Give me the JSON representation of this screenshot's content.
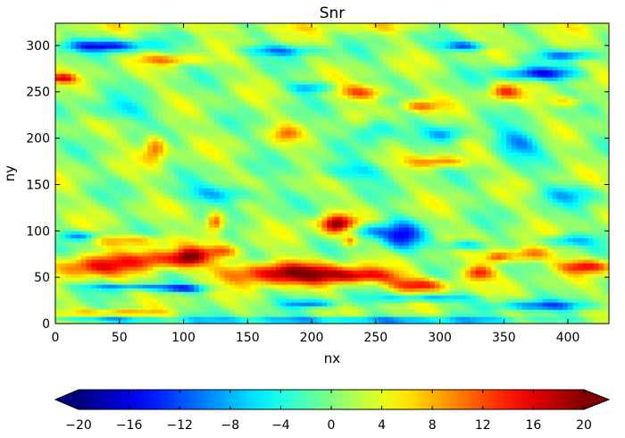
{
  "chart_data": {
    "type": "heatmap",
    "title": "Snr",
    "xlabel": "nx",
    "ylabel": "ny",
    "xlim": [
      0,
      432
    ],
    "ylim": [
      0,
      324
    ],
    "x_ticks": [
      0,
      50,
      100,
      150,
      200,
      250,
      300,
      350,
      400
    ],
    "y_ticks": [
      0,
      50,
      100,
      150,
      200,
      250,
      300
    ],
    "grid": false,
    "colormap": "jet",
    "colorbar": {
      "orientation": "horizontal",
      "location": "bottom",
      "range": [
        -20,
        20
      ],
      "extend": "both",
      "ticks": [
        -20,
        -16,
        -12,
        -8,
        -4,
        0,
        4,
        8,
        12,
        16,
        20
      ],
      "tick_labels": [
        "−20",
        "−16",
        "−12",
        "−8",
        "−4",
        "0",
        "4",
        "8",
        "12",
        "16",
        "20"
      ]
    },
    "background_value": 1,
    "features": [
      {
        "x": 30,
        "y": 62,
        "rx": 30,
        "ry": 12,
        "v": 14
      },
      {
        "x": 80,
        "y": 70,
        "rx": 28,
        "ry": 11,
        "v": 13
      },
      {
        "x": 60,
        "y": 90,
        "rx": 30,
        "ry": 6,
        "v": 10
      },
      {
        "x": 105,
        "y": 72,
        "rx": 12,
        "ry": 10,
        "v": 15
      },
      {
        "x": 130,
        "y": 78,
        "rx": 14,
        "ry": 7,
        "v": 11
      },
      {
        "x": 180,
        "y": 55,
        "rx": 48,
        "ry": 12,
        "v": 19
      },
      {
        "x": 240,
        "y": 52,
        "rx": 30,
        "ry": 8,
        "v": 14
      },
      {
        "x": 285,
        "y": 42,
        "rx": 25,
        "ry": 7,
        "v": 15
      },
      {
        "x": 330,
        "y": 55,
        "rx": 12,
        "ry": 8,
        "v": 14
      },
      {
        "x": 370,
        "y": 75,
        "rx": 16,
        "ry": 8,
        "v": 13
      },
      {
        "x": 415,
        "y": 62,
        "rx": 22,
        "ry": 7,
        "v": 14
      },
      {
        "x": 345,
        "y": 72,
        "rx": 10,
        "ry": 6,
        "v": 12
      },
      {
        "x": 125,
        "y": 110,
        "rx": 7,
        "ry": 10,
        "v": 15
      },
      {
        "x": 218,
        "y": 105,
        "rx": 10,
        "ry": 10,
        "v": 14
      },
      {
        "x": 230,
        "y": 90,
        "rx": 6,
        "ry": 6,
        "v": 12
      },
      {
        "x": 78,
        "y": 190,
        "rx": 9,
        "ry": 14,
        "v": 12
      },
      {
        "x": 180,
        "y": 205,
        "rx": 10,
        "ry": 8,
        "v": 8
      },
      {
        "x": 300,
        "y": 175,
        "rx": 22,
        "ry": 6,
        "v": 11
      },
      {
        "x": 240,
        "y": 250,
        "rx": 20,
        "ry": 8,
        "v": 12
      },
      {
        "x": 285,
        "y": 235,
        "rx": 15,
        "ry": 6,
        "v": 10
      },
      {
        "x": 350,
        "y": 250,
        "rx": 12,
        "ry": 8,
        "v": 12
      },
      {
        "x": 5,
        "y": 265,
        "rx": 10,
        "ry": 5,
        "v": 14
      },
      {
        "x": 90,
        "y": 285,
        "rx": 25,
        "ry": 5,
        "v": 9
      },
      {
        "x": 400,
        "y": 240,
        "rx": 15,
        "ry": 6,
        "v": 8
      },
      {
        "x": 50,
        "y": 12,
        "rx": 35,
        "ry": 3,
        "v": 9
      },
      {
        "x": 220,
        "y": 110,
        "rx": 20,
        "ry": 8,
        "v": 8
      },
      {
        "x": 40,
        "y": 300,
        "rx": 35,
        "ry": 6,
        "v": -14
      },
      {
        "x": 175,
        "y": 295,
        "rx": 30,
        "ry": 6,
        "v": -9
      },
      {
        "x": 320,
        "y": 300,
        "rx": 18,
        "ry": 5,
        "v": -12
      },
      {
        "x": 378,
        "y": 270,
        "rx": 30,
        "ry": 7,
        "v": -14
      },
      {
        "x": 400,
        "y": 290,
        "rx": 20,
        "ry": 5,
        "v": -10
      },
      {
        "x": 270,
        "y": 95,
        "rx": 16,
        "ry": 16,
        "v": -13
      },
      {
        "x": 245,
        "y": 100,
        "rx": 14,
        "ry": 8,
        "v": -9
      },
      {
        "x": 320,
        "y": 85,
        "rx": 15,
        "ry": 5,
        "v": -10
      },
      {
        "x": 400,
        "y": 90,
        "rx": 20,
        "ry": 6,
        "v": -8
      },
      {
        "x": 20,
        "y": 95,
        "rx": 15,
        "ry": 5,
        "v": -10
      },
      {
        "x": 60,
        "y": 40,
        "rx": 40,
        "ry": 3,
        "v": -9
      },
      {
        "x": 200,
        "y": 22,
        "rx": 20,
        "ry": 4,
        "v": -10
      },
      {
        "x": 290,
        "y": 28,
        "rx": 40,
        "ry": 4,
        "v": -9
      },
      {
        "x": 380,
        "y": 20,
        "rx": 40,
        "ry": 5,
        "v": -10
      },
      {
        "x": 100,
        "y": 38,
        "rx": 20,
        "ry": 4,
        "v": -11
      },
      {
        "x": 130,
        "y": 140,
        "rx": 30,
        "ry": 10,
        "v": -8
      },
      {
        "x": 230,
        "y": 165,
        "rx": 30,
        "ry": 10,
        "v": -6
      },
      {
        "x": 360,
        "y": 195,
        "rx": 20,
        "ry": 15,
        "v": -9
      },
      {
        "x": 305,
        "y": 205,
        "rx": 15,
        "ry": 8,
        "v": -7
      },
      {
        "x": 250,
        "y": 210,
        "rx": 15,
        "ry": 12,
        "v": -7
      },
      {
        "x": 200,
        "y": 255,
        "rx": 18,
        "ry": 6,
        "v": -8
      },
      {
        "x": 400,
        "y": 140,
        "rx": 25,
        "ry": 10,
        "v": -6
      },
      {
        "x": 230,
        "y": 4,
        "rx": 150,
        "ry": 4,
        "v": -10
      },
      {
        "x": 30,
        "y": 5,
        "rx": 40,
        "ry": 3,
        "v": -7
      },
      {
        "x": 50,
        "y": 230,
        "rx": 30,
        "ry": 12,
        "v": -5
      },
      {
        "x": 215,
        "y": 320,
        "rx": 230,
        "ry": 5,
        "v": 4
      }
    ]
  }
}
